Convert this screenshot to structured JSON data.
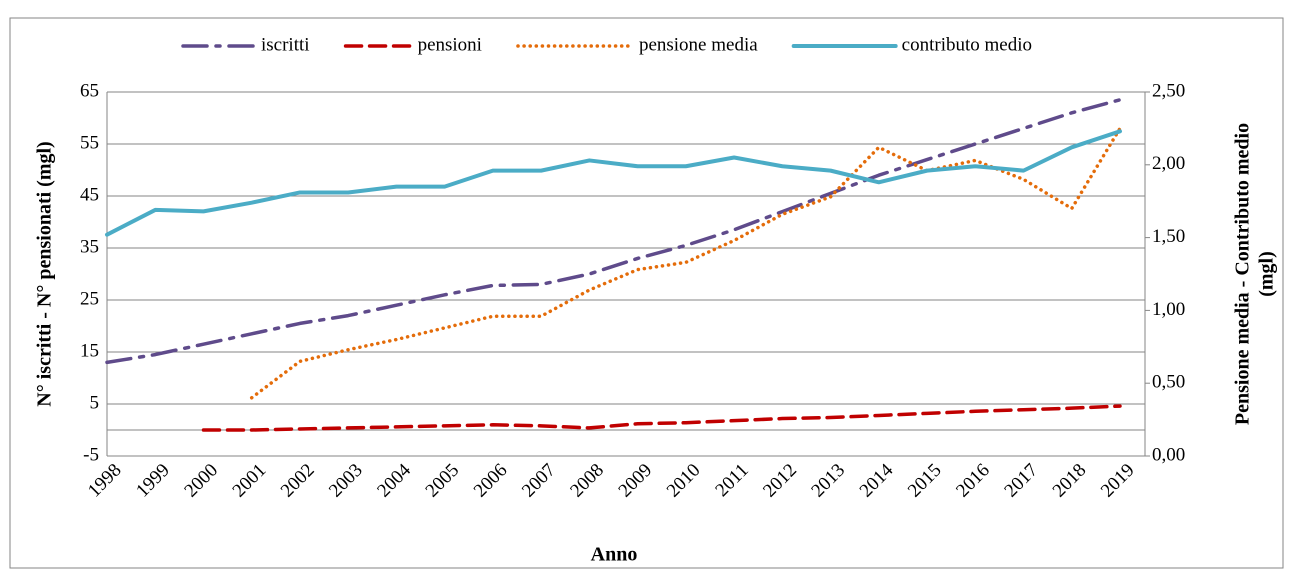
{
  "chart_data": {
    "type": "line",
    "xlabel": "Anno",
    "ylabel": "N° iscritti - N° pensionati (mgl)",
    "y2label": [
      "Pensione media - Contributo medio",
      "(mgl)"
    ],
    "categories": [
      "1998",
      "1999",
      "2000",
      "2001",
      "2002",
      "2003",
      "2004",
      "2005",
      "2006",
      "2007",
      "2008",
      "2009",
      "2010",
      "2011",
      "2012",
      "2013",
      "2014",
      "2015",
      "2016",
      "2017",
      "2018",
      "2019"
    ],
    "ylim": [
      -5,
      65
    ],
    "yticks": [
      -5,
      5,
      15,
      25,
      35,
      45,
      55,
      65
    ],
    "y2lim": [
      0,
      2.5
    ],
    "y2ticks": [
      {
        "value": 0,
        "label": "0,00"
      },
      {
        "value": 0.5,
        "label": "0,50"
      },
      {
        "value": 1,
        "label": "1,00"
      },
      {
        "value": 1.5,
        "label": "1,50"
      },
      {
        "value": 2,
        "label": "2,00"
      },
      {
        "value": 2.5,
        "label": "2,50"
      }
    ],
    "grid": true,
    "legend": "top",
    "series": [
      {
        "name": "iscritti",
        "color": "#5f4b8b",
        "dash": "dashdot",
        "values": [
          13,
          14.5,
          16.5,
          18.5,
          20.5,
          22,
          24,
          26,
          27.8,
          28,
          30,
          33,
          35.5,
          38.5,
          42,
          45.5,
          49,
          52,
          55,
          58,
          61,
          63.5
        ]
      },
      {
        "name": "pensioni",
        "color": "#c00000",
        "dash": "dashed",
        "values": [
          null,
          null,
          0,
          0,
          0.2,
          0.4,
          0.6,
          0.8,
          1,
          0.8,
          0.4,
          1.2,
          1.4,
          1.8,
          2.2,
          2.4,
          2.8,
          3.2,
          3.6,
          3.9,
          4.2,
          4.6
        ]
      },
      {
        "name": "pensione media",
        "color": "#e46c0a",
        "dash": "dotted",
        "axis": "y2",
        "values": [
          null,
          null,
          null,
          0.4,
          0.65,
          0.73,
          0.8,
          0.88,
          0.96,
          0.96,
          1.14,
          1.28,
          1.33,
          1.48,
          1.66,
          1.78,
          2.12,
          1.96,
          2.03,
          1.9,
          1.7,
          2.25
        ]
      },
      {
        "name": "contributo medio",
        "color": "#4bacc6",
        "dash": "solid",
        "axis": "y2",
        "values": [
          1.52,
          1.69,
          1.68,
          1.74,
          1.81,
          1.81,
          1.85,
          1.85,
          1.96,
          1.96,
          2.03,
          1.99,
          1.99,
          2.05,
          1.99,
          1.96,
          1.88,
          1.96,
          1.99,
          1.96,
          2.12,
          2.23
        ]
      }
    ]
  }
}
